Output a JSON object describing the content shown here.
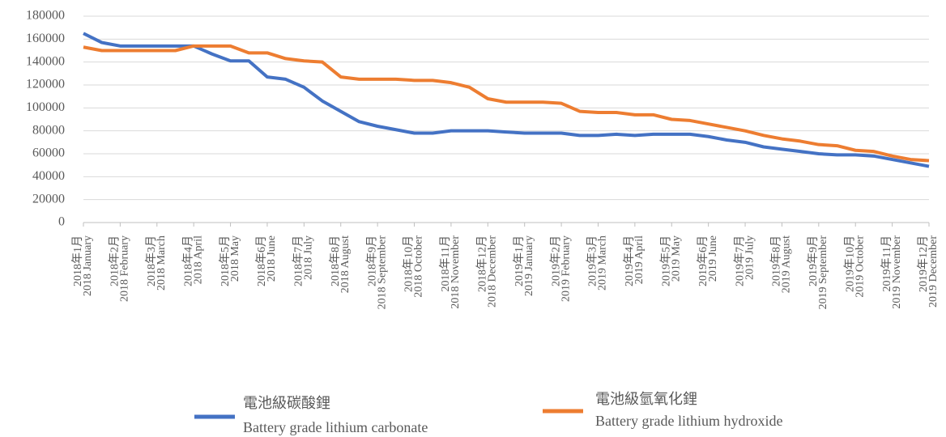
{
  "chart_data": {
    "type": "line",
    "categories": [
      [
        "2018年1月",
        "2018 January"
      ],
      null,
      [
        "2018年2月",
        "2018 February"
      ],
      null,
      [
        "2018年3月",
        "2018 March"
      ],
      null,
      [
        "2018年4月",
        "2018 April"
      ],
      null,
      [
        "2018年5月",
        "2018 May"
      ],
      null,
      [
        "2018年6月",
        "2018 June"
      ],
      null,
      [
        "2018年7月",
        "2018 July"
      ],
      null,
      [
        "2018年8月",
        "2018 August"
      ],
      null,
      [
        "2018年9月",
        "2018 September"
      ],
      null,
      [
        "2018年10月",
        "2018 October"
      ],
      null,
      [
        "2018年11月",
        "2018 November"
      ],
      null,
      [
        "2018年12月",
        "2018 December"
      ],
      null,
      [
        "2019年1月",
        "2019 January"
      ],
      null,
      [
        "2019年2月",
        "2019 February"
      ],
      null,
      [
        "2019年3月",
        "2019 March"
      ],
      null,
      [
        "2019年4月",
        "2019 April"
      ],
      null,
      [
        "2019年5月",
        "2019 May"
      ],
      null,
      [
        "2019年6月",
        "2019 June"
      ],
      null,
      [
        "2019年7月",
        "2019 July"
      ],
      null,
      [
        "2019年8月",
        "2019 August"
      ],
      null,
      [
        "2019年9月",
        "2019 September"
      ],
      null,
      [
        "2019年10月",
        "2019 October"
      ],
      null,
      [
        "2019年11月",
        "2019 November"
      ],
      null,
      [
        "2019年12月",
        "2019 December"
      ]
    ],
    "series": [
      {
        "name": [
          "電池級碳酸鋰",
          "Battery grade lithium carbonate"
        ],
        "color": "#4472c4",
        "values": [
          165000,
          157000,
          154000,
          154000,
          154000,
          154000,
          154000,
          147000,
          141000,
          141000,
          127000,
          125000,
          118000,
          106000,
          97000,
          88000,
          84000,
          81000,
          78000,
          78000,
          80000,
          80000,
          80000,
          79000,
          78000,
          78000,
          78000,
          76000,
          76000,
          77000,
          76000,
          77000,
          77000,
          77000,
          75000,
          72000,
          70000,
          66000,
          64000,
          62000,
          60000,
          59000,
          59000,
          58000,
          55000,
          52000,
          49000
        ]
      },
      {
        "name": [
          "電池級氫氧化鋰",
          "Battery grade lithium hydroxide"
        ],
        "color": "#ed7d31",
        "values": [
          153000,
          150000,
          150000,
          150000,
          150000,
          150000,
          154000,
          154000,
          154000,
          148000,
          148000,
          143000,
          141000,
          140000,
          127000,
          125000,
          125000,
          125000,
          124000,
          124000,
          122000,
          118000,
          108000,
          105000,
          105000,
          105000,
          104000,
          97000,
          96000,
          96000,
          94000,
          94000,
          90000,
          89000,
          86000,
          83000,
          80000,
          76000,
          73000,
          71000,
          68000,
          67000,
          63000,
          62000,
          58000,
          55000,
          54000
        ]
      }
    ],
    "ylim": [
      0,
      180000
    ],
    "yticks": [
      0,
      20000,
      40000,
      60000,
      80000,
      100000,
      120000,
      140000,
      160000,
      180000
    ],
    "grid": true
  }
}
